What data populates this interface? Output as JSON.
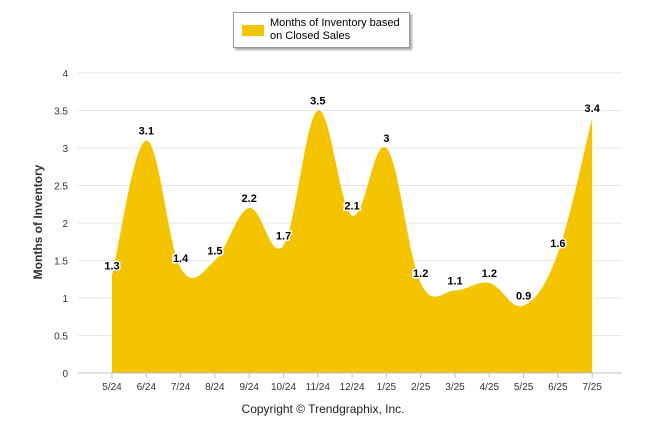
{
  "chart_data": {
    "type": "area",
    "categories": [
      "5/24",
      "6/24",
      "7/24",
      "8/24",
      "9/24",
      "10/24",
      "11/24",
      "12/24",
      "1/25",
      "2/25",
      "3/25",
      "4/25",
      "5/25",
      "6/25",
      "7/25"
    ],
    "series": [
      {
        "name": "Months of Inventory based on Closed Sales",
        "values": [
          1.3,
          3.1,
          1.4,
          1.5,
          2.2,
          1.7,
          3.5,
          2.1,
          3,
          1.2,
          1.1,
          1.2,
          0.9,
          1.6,
          3.4
        ],
        "labels": [
          "1.3",
          "3.1",
          "1.4",
          "1.5",
          "2.2",
          "1.7",
          "3.5",
          "2.1",
          "3",
          "1.2",
          "1.1",
          "1.2",
          "0.9",
          "1.6",
          "3.4"
        ],
        "color": "#f5c400"
      }
    ],
    "ylabel": "Months of Inventory",
    "xlabel": "",
    "ylim": [
      0,
      4
    ],
    "yticks": [
      "0",
      "0.5",
      "1",
      "1.5",
      "2",
      "2.5",
      "3",
      "3.5",
      "4"
    ],
    "grid": true,
    "legend_position": "top-center"
  },
  "legend": {
    "label": "Months of Inventory based on Closed Sales"
  },
  "copyright": "Copyright © Trendgraphix, Inc."
}
